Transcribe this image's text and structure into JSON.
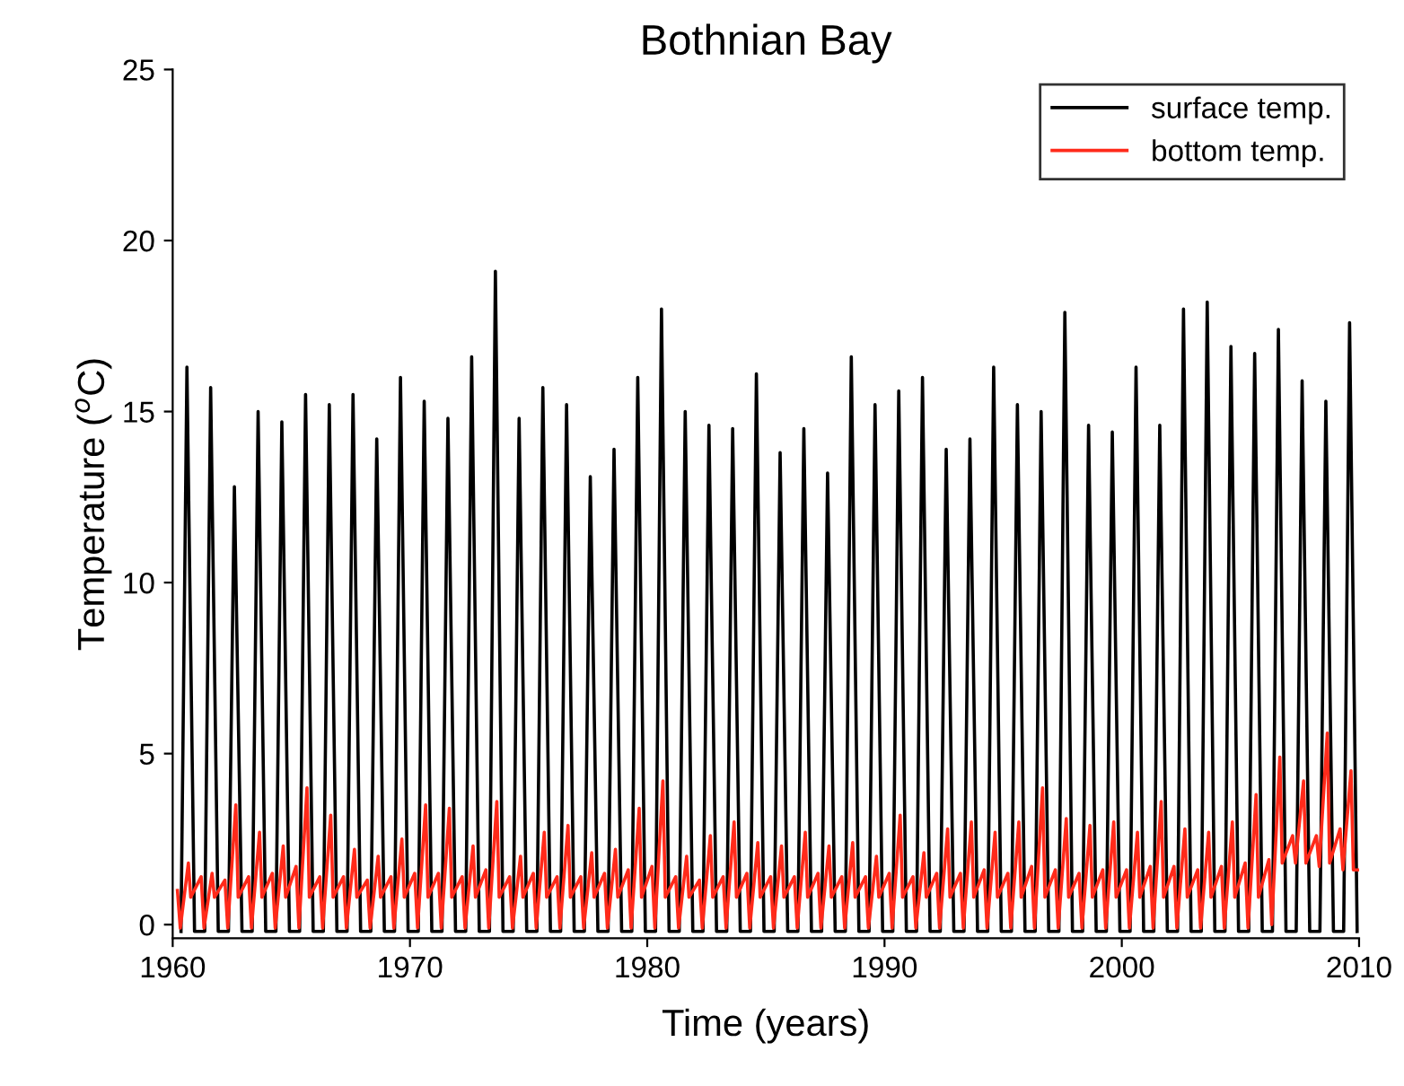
{
  "chart_data": {
    "type": "line",
    "title": "Bothnian Bay",
    "xlabel": "Time (years)",
    "ylabel": "Temperature ($^{o}$C)",
    "xlim": [
      1960,
      2010
    ],
    "xticks": [
      1960,
      1970,
      1980,
      1990,
      2000,
      2010
    ],
    "ylim": [
      -0.4,
      25
    ],
    "yticks": [
      0,
      5,
      10,
      15,
      20,
      25
    ],
    "grid": false,
    "legend": "top right",
    "line_style": "solid",
    "marker": "none",
    "series": [
      {
        "name": "surface temp.",
        "color": "#000000",
        "x": [
          1960.35,
          1960.6,
          1960.92,
          1961.35,
          1961.6,
          1961.92,
          1962.35,
          1962.6,
          1962.92,
          1963.35,
          1963.6,
          1963.92,
          1964.35,
          1964.6,
          1964.92,
          1965.35,
          1965.6,
          1965.92,
          1966.35,
          1966.6,
          1966.92,
          1967.35,
          1967.6,
          1967.92,
          1968.35,
          1968.6,
          1968.92,
          1969.35,
          1969.6,
          1969.92,
          1970.35,
          1970.6,
          1970.92,
          1971.35,
          1971.6,
          1971.92,
          1972.35,
          1972.6,
          1972.92,
          1973.35,
          1973.6,
          1973.92,
          1974.35,
          1974.6,
          1974.92,
          1975.35,
          1975.6,
          1975.92,
          1976.35,
          1976.6,
          1976.92,
          1977.35,
          1977.6,
          1977.92,
          1978.35,
          1978.6,
          1978.92,
          1979.35,
          1979.6,
          1979.92,
          1980.35,
          1980.6,
          1980.92,
          1981.35,
          1981.6,
          1981.92,
          1982.35,
          1982.6,
          1982.92,
          1983.35,
          1983.6,
          1983.92,
          1984.35,
          1984.6,
          1984.92,
          1985.35,
          1985.6,
          1985.92,
          1986.35,
          1986.6,
          1986.92,
          1987.35,
          1987.6,
          1987.92,
          1988.35,
          1988.6,
          1988.92,
          1989.35,
          1989.6,
          1989.92,
          1990.35,
          1990.6,
          1990.92,
          1991.35,
          1991.6,
          1991.92,
          1992.35,
          1992.6,
          1992.92,
          1993.35,
          1993.6,
          1993.92,
          1994.35,
          1994.6,
          1994.92,
          1995.35,
          1995.6,
          1995.92,
          1996.35,
          1996.6,
          1996.92,
          1997.35,
          1997.6,
          1997.92,
          1998.35,
          1998.6,
          1998.92,
          1999.35,
          1999.6,
          1999.92,
          2000.35,
          2000.6,
          2000.92,
          2001.35,
          2001.6,
          2001.92,
          2002.35,
          2002.6,
          2002.92,
          2003.35,
          2003.6,
          2003.92,
          2004.35,
          2004.6,
          2004.92,
          2005.35,
          2005.6,
          2005.92,
          2006.35,
          2006.6,
          2006.92,
          2007.35,
          2007.6,
          2007.92,
          2008.35,
          2008.6,
          2008.92,
          2009.35,
          2009.6,
          2009.92
        ],
        "values": [
          -0.2,
          16.3,
          -0.2,
          -0.2,
          15.7,
          -0.2,
          -0.2,
          12.8,
          -0.2,
          -0.2,
          15.0,
          -0.2,
          -0.2,
          14.7,
          -0.2,
          -0.2,
          15.5,
          -0.2,
          -0.2,
          15.2,
          -0.2,
          -0.2,
          15.5,
          -0.2,
          -0.2,
          14.2,
          -0.2,
          -0.2,
          16.0,
          -0.2,
          -0.2,
          15.3,
          -0.2,
          -0.2,
          14.8,
          -0.2,
          -0.2,
          16.6,
          -0.2,
          -0.2,
          19.1,
          -0.2,
          -0.2,
          14.8,
          -0.2,
          -0.2,
          15.7,
          -0.2,
          -0.2,
          15.2,
          -0.2,
          -0.2,
          13.1,
          -0.2,
          -0.2,
          13.9,
          -0.2,
          -0.2,
          16.0,
          -0.2,
          -0.2,
          18.0,
          -0.2,
          -0.2,
          15.0,
          -0.2,
          -0.2,
          14.6,
          -0.2,
          -0.2,
          14.5,
          -0.2,
          -0.2,
          16.1,
          -0.2,
          -0.2,
          13.8,
          -0.2,
          -0.2,
          14.5,
          -0.2,
          -0.2,
          13.2,
          -0.2,
          -0.2,
          16.6,
          -0.2,
          -0.2,
          15.2,
          -0.2,
          -0.2,
          15.6,
          -0.2,
          -0.2,
          16.0,
          -0.2,
          -0.2,
          13.9,
          -0.2,
          -0.2,
          14.2,
          -0.2,
          -0.2,
          16.3,
          -0.2,
          -0.2,
          15.2,
          -0.2,
          -0.2,
          15.0,
          -0.2,
          -0.2,
          17.9,
          -0.2,
          -0.2,
          14.6,
          -0.2,
          -0.2,
          14.4,
          -0.2,
          -0.2,
          16.3,
          -0.2,
          -0.2,
          14.6,
          -0.2,
          -0.2,
          18.0,
          -0.2,
          -0.2,
          18.2,
          -0.2,
          -0.2,
          16.9,
          -0.2,
          -0.2,
          16.7,
          -0.2,
          -0.2,
          17.4,
          -0.2,
          -0.2,
          15.9,
          -0.2,
          -0.2,
          15.3,
          -0.2,
          -0.2,
          17.6,
          -0.2
        ]
      },
      {
        "name": "bottom temp.",
        "color": "#ff2a1a",
        "x": [
          1960.2,
          1960.32,
          1960.66,
          1960.76,
          1961.2,
          1961.32,
          1961.66,
          1961.76,
          1962.2,
          1962.32,
          1962.66,
          1962.76,
          1963.2,
          1963.32,
          1963.66,
          1963.76,
          1964.2,
          1964.32,
          1964.66,
          1964.76,
          1965.2,
          1965.32,
          1965.66,
          1965.76,
          1966.2,
          1966.32,
          1966.66,
          1966.76,
          1967.2,
          1967.32,
          1967.66,
          1967.76,
          1968.2,
          1968.32,
          1968.66,
          1968.76,
          1969.2,
          1969.32,
          1969.66,
          1969.76,
          1970.2,
          1970.32,
          1970.66,
          1970.76,
          1971.2,
          1971.32,
          1971.66,
          1971.76,
          1972.2,
          1972.32,
          1972.66,
          1972.76,
          1973.2,
          1973.32,
          1973.66,
          1973.76,
          1974.2,
          1974.32,
          1974.66,
          1974.76,
          1975.2,
          1975.32,
          1975.66,
          1975.76,
          1976.2,
          1976.32,
          1976.66,
          1976.76,
          1977.2,
          1977.32,
          1977.66,
          1977.76,
          1978.2,
          1978.32,
          1978.66,
          1978.76,
          1979.2,
          1979.32,
          1979.66,
          1979.76,
          1980.2,
          1980.32,
          1980.66,
          1980.76,
          1981.2,
          1981.32,
          1981.66,
          1981.76,
          1982.2,
          1982.32,
          1982.66,
          1982.76,
          1983.2,
          1983.32,
          1983.66,
          1983.76,
          1984.2,
          1984.32,
          1984.66,
          1984.76,
          1985.2,
          1985.32,
          1985.66,
          1985.76,
          1986.2,
          1986.32,
          1986.66,
          1986.76,
          1987.2,
          1987.32,
          1987.66,
          1987.76,
          1988.2,
          1988.32,
          1988.66,
          1988.76,
          1989.2,
          1989.32,
          1989.66,
          1989.76,
          1990.2,
          1990.32,
          1990.66,
          1990.76,
          1991.2,
          1991.32,
          1991.66,
          1991.76,
          1992.2,
          1992.32,
          1992.66,
          1992.76,
          1993.2,
          1993.32,
          1993.66,
          1993.76,
          1994.2,
          1994.32,
          1994.66,
          1994.76,
          1995.2,
          1995.32,
          1995.66,
          1995.76,
          1996.2,
          1996.32,
          1996.66,
          1996.76,
          1997.2,
          1997.32,
          1997.66,
          1997.76,
          1998.2,
          1998.32,
          1998.66,
          1998.76,
          1999.2,
          1999.32,
          1999.66,
          1999.76,
          2000.2,
          2000.32,
          2000.66,
          2000.76,
          2001.2,
          2001.32,
          2001.66,
          2001.76,
          2002.2,
          2002.32,
          2002.66,
          2002.76,
          2003.2,
          2003.32,
          2003.66,
          2003.76,
          2004.2,
          2004.32,
          2004.66,
          2004.76,
          2005.2,
          2005.32,
          2005.66,
          2005.76,
          2006.2,
          2006.32,
          2006.66,
          2006.76,
          2007.2,
          2007.32,
          2007.66,
          2007.76,
          2008.2,
          2008.32,
          2008.66,
          2008.76,
          2009.2,
          2009.32,
          2009.66,
          2009.76,
          2009.95
        ],
        "values": [
          1.0,
          -0.1,
          1.8,
          0.8,
          1.4,
          -0.1,
          1.5,
          0.8,
          1.3,
          -0.1,
          3.5,
          0.8,
          1.4,
          -0.1,
          2.7,
          0.8,
          1.5,
          -0.1,
          2.3,
          0.8,
          1.7,
          -0.1,
          4.0,
          0.8,
          1.4,
          -0.1,
          3.2,
          0.8,
          1.4,
          -0.1,
          2.2,
          0.8,
          1.3,
          -0.1,
          2.0,
          0.8,
          1.4,
          -0.1,
          2.5,
          0.8,
          1.5,
          -0.1,
          3.5,
          0.8,
          1.5,
          -0.1,
          3.4,
          0.8,
          1.4,
          -0.1,
          2.3,
          0.8,
          1.6,
          -0.1,
          3.6,
          0.8,
          1.4,
          -0.1,
          2.0,
          0.8,
          1.5,
          -0.1,
          2.7,
          0.8,
          1.4,
          -0.1,
          2.9,
          0.8,
          1.4,
          -0.1,
          2.1,
          0.8,
          1.5,
          -0.1,
          2.2,
          0.8,
          1.6,
          -0.1,
          3.4,
          0.8,
          1.7,
          -0.1,
          4.2,
          0.8,
          1.4,
          -0.1,
          2.0,
          0.8,
          1.3,
          -0.1,
          2.6,
          0.8,
          1.4,
          -0.1,
          3.0,
          0.8,
          1.5,
          -0.1,
          2.4,
          0.8,
          1.4,
          -0.1,
          2.3,
          0.8,
          1.4,
          -0.1,
          2.7,
          0.8,
          1.5,
          -0.1,
          2.3,
          0.8,
          1.4,
          -0.1,
          2.4,
          0.8,
          1.4,
          -0.1,
          2.0,
          0.8,
          1.5,
          -0.1,
          3.2,
          0.8,
          1.4,
          -0.1,
          2.1,
          0.8,
          1.5,
          -0.1,
          2.8,
          0.8,
          1.5,
          -0.1,
          3.0,
          0.8,
          1.6,
          -0.1,
          2.7,
          0.8,
          1.5,
          -0.1,
          3.0,
          0.8,
          1.7,
          -0.1,
          4.0,
          0.8,
          1.6,
          -0.1,
          3.1,
          0.8,
          1.5,
          -0.1,
          2.9,
          0.8,
          1.6,
          -0.1,
          3.0,
          0.8,
          1.6,
          -0.1,
          2.7,
          0.8,
          1.7,
          -0.1,
          3.6,
          0.8,
          1.7,
          -0.1,
          2.8,
          0.8,
          1.6,
          -0.1,
          2.7,
          0.8,
          1.7,
          -0.1,
          3.0,
          0.8,
          1.8,
          -0.1,
          3.8,
          0.8,
          1.9,
          0.0,
          4.9,
          1.8,
          2.6,
          1.8,
          4.2,
          1.8,
          2.6,
          1.7,
          5.6,
          1.8,
          2.8,
          1.6,
          4.5,
          1.6,
          1.6
        ]
      }
    ]
  }
}
